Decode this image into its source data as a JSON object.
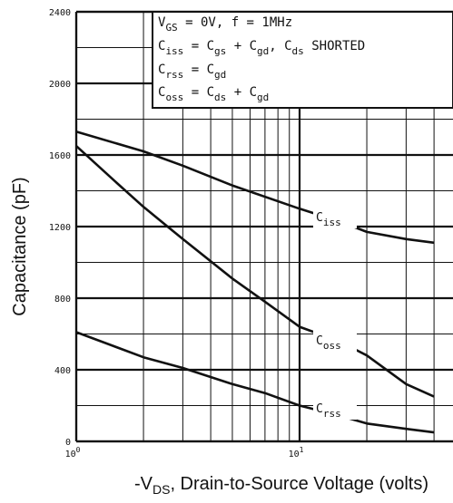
{
  "chart_data": {
    "type": "line",
    "x_scale": "log",
    "xlim": [
      1,
      40
    ],
    "ylim": [
      0,
      2400
    ],
    "grid": true,
    "xlabel": "-VDS, Drain-to-Source Voltage (volts)",
    "xlabel_main": "-V",
    "xlabel_sub": "DS",
    "xlabel_rest": ", Drain-to-Source Voltage (volts)",
    "ylabel": "Capacitance (pF)",
    "y_ticks": [
      {
        "value": 0,
        "label": "0"
      },
      {
        "value": 400,
        "label": "400"
      },
      {
        "value": 800,
        "label": "800"
      },
      {
        "value": 1200,
        "label": "1200"
      },
      {
        "value": 1600,
        "label": "1600"
      },
      {
        "value": 2000,
        "label": "2000"
      },
      {
        "value": 2400,
        "label": "2400"
      }
    ],
    "x_ticks": [
      {
        "value": 1,
        "base": "10",
        "exp": "0"
      },
      {
        "value": 10,
        "base": "10",
        "exp": "1"
      }
    ],
    "legend_lines": [
      [
        {
          "t": "V"
        },
        {
          "t": "GS",
          "sub": true
        },
        {
          "t": " = 0V,  f = 1MHz"
        }
      ],
      [
        {
          "t": "C"
        },
        {
          "t": "iss",
          "sub": true
        },
        {
          "t": " = C"
        },
        {
          "t": "gs",
          "sub": true
        },
        {
          "t": " + C"
        },
        {
          "t": "gd",
          "sub": true
        },
        {
          "t": ",  C"
        },
        {
          "t": "ds",
          "sub": true
        },
        {
          "t": " SHORTED"
        }
      ],
      [
        {
          "t": "C"
        },
        {
          "t": "rss",
          "sub": true
        },
        {
          "t": " = C"
        },
        {
          "t": "gd",
          "sub": true
        }
      ],
      [
        {
          "t": "C"
        },
        {
          "t": "oss",
          "sub": true
        },
        {
          "t": " = C"
        },
        {
          "t": "ds",
          "sub": true
        },
        {
          "t": " + C"
        },
        {
          "t": "gd",
          "sub": true
        }
      ]
    ],
    "series": [
      {
        "name": "Ciss",
        "label_main": "C",
        "label_sub": "iss",
        "x": [
          1,
          2,
          3,
          5,
          10,
          15,
          20,
          30,
          40
        ],
        "y": [
          1730,
          1620,
          1540,
          1430,
          1300,
          1230,
          1170,
          1130,
          1110
        ]
      },
      {
        "name": "Coss",
        "label_main": "C",
        "label_sub": "oss",
        "x": [
          1,
          1.5,
          2,
          3,
          5,
          7,
          10,
          15,
          20,
          30,
          40
        ],
        "y": [
          1650,
          1450,
          1310,
          1130,
          910,
          780,
          640,
          560,
          480,
          320,
          250
        ]
      },
      {
        "name": "Crss",
        "label_main": "C",
        "label_sub": "rss",
        "x": [
          1,
          2,
          3,
          5,
          7,
          10,
          15,
          20,
          30,
          40
        ],
        "y": [
          610,
          470,
          410,
          320,
          270,
          200,
          145,
          100,
          70,
          50
        ]
      }
    ]
  }
}
